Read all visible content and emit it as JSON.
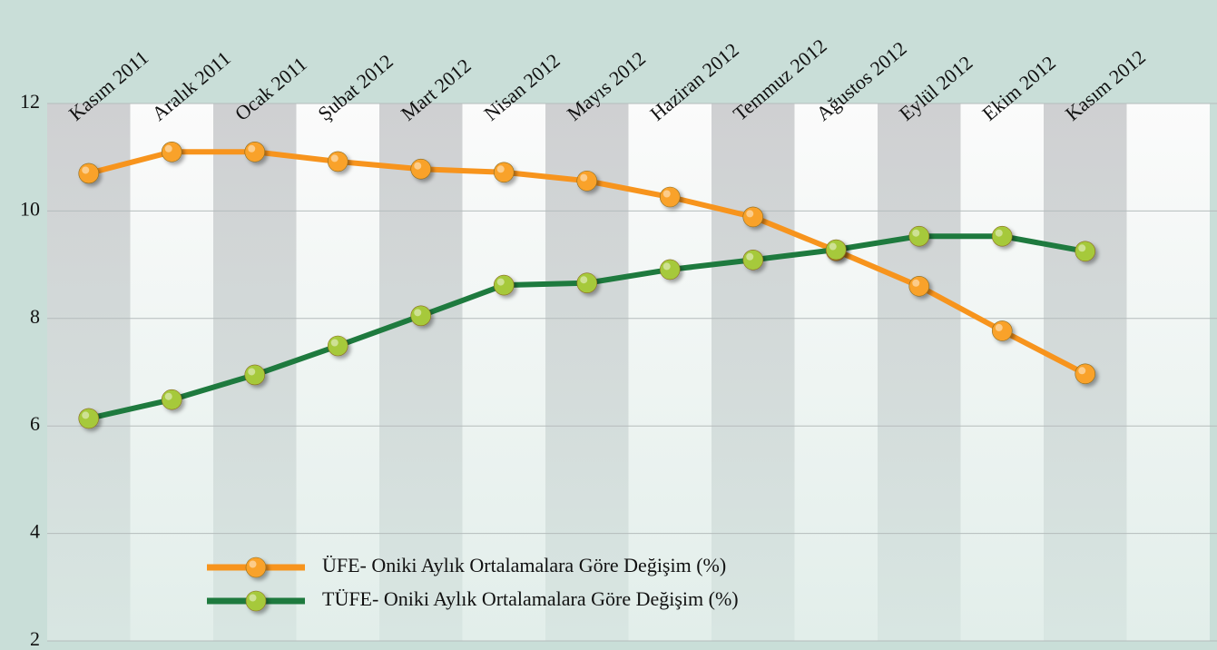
{
  "chart_data": {
    "type": "line",
    "categories": [
      "Kasım 2011",
      "Aralık 2011",
      "Ocak 2011",
      "Şubat 2012",
      "Mart 2012",
      "Nisan 2012",
      "Mayıs 2012",
      "Haziran 2012",
      "Temmuz 2012",
      "Ağustos 2012",
      "Eylül 2012",
      "Ekim 2012",
      "Kasım 2012"
    ],
    "series": [
      {
        "name": "ÜFE- Oniki Aylık Ortalamalara Göre Değişim (%)",
        "color": "#f7941d",
        "marker_color": "#f9a22a",
        "values": [
          10.7,
          11.1,
          11.1,
          10.92,
          10.78,
          10.72,
          10.56,
          10.26,
          9.89,
          9.26,
          8.6,
          7.77,
          6.97
        ]
      },
      {
        "name": "TÜFE- Oniki Aylık Ortalamalara Göre Değişim (%)",
        "color": "#1e7a3e",
        "marker_color": "#a6c93a",
        "values": [
          6.14,
          6.49,
          6.95,
          7.49,
          8.05,
          8.62,
          8.66,
          8.91,
          9.09,
          9.28,
          9.53,
          9.53,
          9.25
        ]
      }
    ],
    "ylim": [
      2,
      12
    ],
    "yticks": [
      2,
      4,
      6,
      8,
      10,
      12
    ],
    "grid": true,
    "legend": "lower center"
  }
}
